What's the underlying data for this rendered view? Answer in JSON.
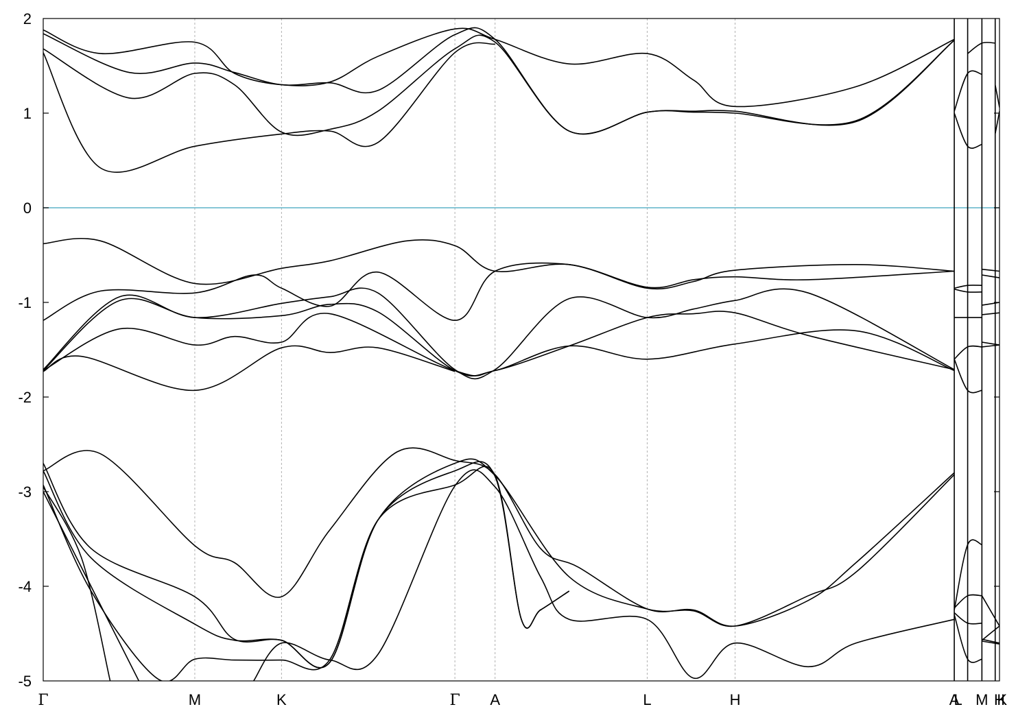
{
  "chart_data": {
    "type": "line",
    "ylim": [
      -5,
      2
    ],
    "grid": "vertical dashed lines at high-symmetry points",
    "y_ticks": [
      "2",
      "1",
      "0",
      "-1",
      "-2",
      "-3",
      "-4",
      "-5"
    ],
    "y_tick_values": [
      2,
      1,
      0,
      -1,
      -2,
      -3,
      -4,
      -5
    ],
    "x_ticks": [
      "Γ",
      "M",
      "K",
      "Γ",
      "A",
      "L",
      "H",
      "A",
      "L",
      "M",
      "K",
      "H"
    ],
    "x_tick_positions": [
      0,
      0.1585,
      0.2492,
      0.4305,
      0.4725,
      0.6316,
      0.7235,
      0.9527,
      0.9667,
      0.9816,
      0.9955,
      1.0
    ],
    "x_range": [
      0,
      1
    ],
    "breaks_at": [
      0.9527,
      0.9667,
      0.9816,
      0.9955
    ],
    "colors": {
      "bands": "#000000",
      "fermi_level": "#5fb4c9",
      "grid": "#b0b0b0"
    },
    "fermi_level": 0,
    "series": [
      {
        "x": [
          0,
          0.06,
          0.1585,
          0.2,
          0.2492,
          0.3,
          0.35,
          0.4305,
          0.4725,
          0.55,
          0.6316,
          0.68,
          0.7235,
          0.85,
          0.9527
        ],
        "values": [
          1.88,
          1.63,
          1.75,
          1.42,
          1.3,
          1.33,
          1.6,
          1.89,
          1.78,
          1.52,
          1.63,
          1.35,
          1.07,
          1.28,
          1.78
        ]
      },
      {
        "x": [
          0,
          0.09,
          0.1585,
          0.2,
          0.2492,
          0.3,
          0.35,
          0.4305,
          0.4725,
          0.55,
          0.6316,
          0.68,
          0.7235,
          0.85,
          0.9527
        ],
        "values": [
          1.84,
          1.43,
          1.53,
          1.43,
          1.3,
          1.32,
          1.24,
          1.83,
          1.78,
          0.81,
          1.01,
          1.01,
          1.0,
          0.92,
          1.77
        ]
      },
      {
        "x": [
          0,
          0.09,
          0.1585,
          0.2,
          0.2492,
          0.3,
          0.35,
          0.4305,
          0.4725,
          0.55,
          0.6316,
          0.68,
          0.7235,
          0.85,
          0.9527
        ],
        "values": [
          1.68,
          1.16,
          1.42,
          1.3,
          0.8,
          0.83,
          1.02,
          1.68,
          1.75,
          0.81,
          1.01,
          1.02,
          1.02,
          0.91,
          1.77
        ]
      },
      {
        "x": [
          0,
          0.06,
          0.1585,
          0.2492,
          0.3,
          0.35,
          0.4305,
          0.4725
        ],
        "values": [
          1.64,
          0.42,
          0.65,
          0.78,
          0.81,
          0.69,
          1.64,
          1.73
        ]
      },
      {
        "x": [
          0,
          0.06,
          0.1585,
          0.2492,
          0.3,
          0.38,
          0.4305,
          0.4725,
          0.55,
          0.6316,
          0.68,
          0.7235,
          0.85,
          0.9527
        ],
        "values": [
          -0.38,
          -0.35,
          -0.8,
          -0.64,
          -0.56,
          -0.35,
          -0.4,
          -0.67,
          -0.6,
          -0.85,
          -0.78,
          -0.66,
          -0.6,
          -0.67
        ]
      },
      {
        "x": [
          0,
          0.06,
          0.1585,
          0.22,
          0.2492,
          0.3,
          0.35,
          0.4305,
          0.4725,
          0.55,
          0.6316,
          0.68,
          0.7235,
          0.8,
          0.9527
        ],
        "values": [
          -1.19,
          -0.88,
          -0.9,
          -0.71,
          -0.85,
          -1.04,
          -0.68,
          -1.19,
          -0.67,
          -0.6,
          -0.84,
          -0.76,
          -0.73,
          -0.76,
          -0.67
        ]
      },
      {
        "x": [
          0,
          0.08,
          0.1585,
          0.2492,
          0.3,
          0.35,
          0.4305,
          0.4725,
          0.55,
          0.6316,
          0.68,
          0.7235,
          0.8,
          0.9527
        ],
        "values": [
          -1.71,
          -0.94,
          -1.16,
          -1.01,
          -0.94,
          -0.9,
          -1.71,
          -1.71,
          -0.96,
          -1.16,
          -1.07,
          -0.98,
          -0.9,
          -1.71
        ]
      },
      {
        "x": [
          0,
          0.08,
          0.1585,
          0.2492,
          0.3,
          0.35,
          0.4305,
          0.4725,
          0.55,
          0.6316,
          0.68,
          0.7235,
          0.8,
          0.9527
        ],
        "values": [
          -1.72,
          -0.98,
          -1.16,
          -1.14,
          -1.02,
          -1.1,
          -1.72,
          -1.72,
          -1.46,
          -1.16,
          -1.12,
          -1.11,
          -1.35,
          -1.71
        ]
      },
      {
        "x": [
          0,
          0.08,
          0.1585,
          0.2,
          0.2492,
          0.3,
          0.4305,
          0.4725,
          0.55,
          0.6316,
          0.7235,
          0.85,
          0.9527
        ],
        "values": [
          -1.72,
          -1.28,
          -1.45,
          -1.36,
          -1.42,
          -1.12,
          -1.72,
          -1.72,
          -1.46,
          -1.6,
          -1.44,
          -1.3,
          -1.72
        ]
      },
      {
        "x": [
          0,
          0.04,
          0.1585,
          0.2492,
          0.3,
          0.35,
          0.4305
        ],
        "values": [
          -1.73,
          -1.57,
          -1.93,
          -1.48,
          -1.53,
          -1.48,
          -1.73
        ]
      },
      {
        "x": [
          0,
          0.06,
          0.1585,
          0.2,
          0.2492,
          0.3,
          0.37,
          0.4305,
          0.4725,
          0.52,
          0.56,
          0.6316,
          0.68,
          0.7235,
          0.8,
          0.85,
          0.9527
        ],
        "values": [
          -2.78,
          -2.6,
          -3.57,
          -3.75,
          -4.11,
          -3.4,
          -2.58,
          -2.67,
          -2.82,
          -3.6,
          -3.8,
          -4.24,
          -4.25,
          -4.42,
          -4.15,
          -3.75,
          -2.8
        ]
      },
      {
        "x": [
          0,
          0.05,
          0.1585,
          0.2,
          0.2492,
          0.3,
          0.35,
          0.4305,
          0.4725,
          0.55,
          0.6316,
          0.68,
          0.7235,
          0.8,
          0.85,
          0.9527
        ],
        "values": [
          -2.7,
          -3.6,
          -4.11,
          -4.56,
          -4.57,
          -4.8,
          -3.3,
          -2.7,
          -2.83,
          -3.9,
          -4.24,
          -4.26,
          -4.42,
          -4.1,
          -3.85,
          -2.82
        ]
      },
      {
        "x": [
          0,
          0.05,
          0.1585,
          0.2,
          0.2492,
          0.3,
          0.35,
          0.4305,
          0.4725,
          0.5,
          0.52,
          0.55
        ],
        "values": [
          -2.78,
          -3.7,
          -4.4,
          -4.57,
          -4.57,
          -4.8,
          -3.3,
          -2.78,
          -2.84,
          -4.35,
          -4.25,
          -4.05
        ]
      },
      {
        "x": [
          0,
          0.05,
          0.12,
          0.1585,
          0.2,
          0.2492,
          0.3,
          0.35,
          0.4305,
          0.4725,
          0.5,
          0.52,
          0.55
        ],
        "values": [
          -2.93,
          -4.05,
          -4.98,
          -4.77,
          -4.78,
          -4.78,
          -4.77,
          -3.3,
          -2.93,
          -2.83,
          -4.35,
          -4.25,
          -4.05
        ]
      },
      {
        "x": [
          0,
          0.04,
          0.07
        ],
        "values": [
          -2.95,
          -3.7,
          -5.0
        ]
      },
      {
        "x": [
          0,
          0.05,
          0.1
        ],
        "values": [
          -3.0,
          -4.0,
          -5.0
        ]
      },
      {
        "x": [
          0.22,
          0.2492,
          0.3,
          0.35,
          0.4305,
          0.4725,
          0.52,
          0.55,
          0.6316,
          0.68,
          0.7235,
          0.8,
          0.85,
          0.9527
        ],
        "values": [
          -5.0,
          -4.6,
          -4.78,
          -4.72,
          -2.94,
          -2.95,
          -3.9,
          -4.35,
          -4.35,
          -4.97,
          -4.6,
          -4.85,
          -4.6,
          -4.35
        ]
      },
      {
        "x": [
          0.9667,
          0.9816,
          0.9955
        ],
        "values": [
          1.63,
          1.74,
          1.74
        ]
      },
      {
        "x": [
          0.9527,
          0.9667,
          0.9816
        ],
        "values": [
          1.02,
          1.42,
          1.41
        ]
      },
      {
        "x": [
          0.9527,
          0.9667,
          0.9816
        ],
        "values": [
          1.0,
          0.65,
          0.67
        ]
      },
      {
        "x": [
          0.9955,
          1.0
        ],
        "values": [
          1.3,
          1.06
        ]
      },
      {
        "x": [
          0.9955,
          1.0
        ],
        "values": [
          0.78,
          1.02
        ]
      },
      {
        "x": [
          0.9527,
          0.9667,
          0.9816
        ],
        "values": [
          -0.85,
          -0.82,
          -0.82
        ]
      },
      {
        "x": [
          0.9527,
          0.9667,
          0.9816
        ],
        "values": [
          -0.86,
          -0.89,
          -0.89
        ]
      },
      {
        "x": [
          0.9816,
          1.0
        ],
        "values": [
          -0.65,
          -0.67
        ]
      },
      {
        "x": [
          0.9816,
          1.0
        ],
        "values": [
          -0.71,
          -0.74
        ]
      },
      {
        "x": [
          0.9816,
          1.0
        ],
        "values": [
          -1.03,
          -1.0
        ]
      },
      {
        "x": [
          0.9816,
          1.0
        ],
        "values": [
          -1.13,
          -1.11
        ]
      },
      {
        "x": [
          0.9527,
          0.9667,
          0.9816
        ],
        "values": [
          -1.16,
          -1.16,
          -1.16
        ]
      },
      {
        "x": [
          0.9527,
          0.9667,
          0.9816
        ],
        "values": [
          -1.6,
          -1.47,
          -1.47
        ]
      },
      {
        "x": [
          0.9527,
          0.9667,
          0.9816
        ],
        "values": [
          -1.6,
          -1.93,
          -1.93
        ]
      },
      {
        "x": [
          0.9816,
          1.0
        ],
        "values": [
          -1.42,
          -1.45
        ]
      },
      {
        "x": [
          0.9816,
          1.0
        ],
        "values": [
          -1.47,
          -1.45
        ]
      },
      {
        "x": [
          0.9527,
          0.9667,
          0.9816
        ],
        "values": [
          -4.25,
          -3.56,
          -3.56
        ]
      },
      {
        "x": [
          0.9527,
          0.9667,
          0.9816
        ],
        "values": [
          -4.23,
          -4.1,
          -4.1
        ]
      },
      {
        "x": [
          0.9527,
          0.9667,
          0.9816
        ],
        "values": [
          -4.28,
          -4.39,
          -4.39
        ]
      },
      {
        "x": [
          0.9527,
          0.9667,
          0.9816
        ],
        "values": [
          -4.3,
          -4.77,
          -4.77
        ]
      },
      {
        "x": [
          0.9816,
          1.0
        ],
        "values": [
          -4.1,
          -4.42
        ]
      },
      {
        "x": [
          0.9816,
          1.0
        ],
        "values": [
          -4.57,
          -4.42
        ]
      },
      {
        "x": [
          0.9816,
          1.0
        ],
        "values": [
          -4.58,
          -4.61
        ]
      },
      {
        "x": [
          0.9816,
          1.0
        ],
        "values": [
          -4.56,
          -4.6
        ]
      }
    ]
  }
}
